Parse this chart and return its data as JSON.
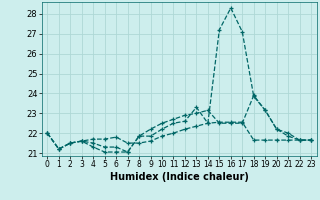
{
  "xlabel": "Humidex (Indice chaleur)",
  "background_color": "#cdeeed",
  "grid_color": "#aed8d6",
  "line_color": "#006666",
  "xlim": [
    -0.5,
    23.5
  ],
  "ylim": [
    20.85,
    28.6
  ],
  "yticks": [
    21,
    22,
    23,
    24,
    25,
    26,
    27,
    28
  ],
  "xticks": [
    0,
    1,
    2,
    3,
    4,
    5,
    6,
    7,
    8,
    9,
    10,
    11,
    12,
    13,
    14,
    15,
    16,
    17,
    18,
    19,
    20,
    21,
    22,
    23
  ],
  "series": [
    [
      22.0,
      21.2,
      21.5,
      21.6,
      21.3,
      21.05,
      21.05,
      21.05,
      21.85,
      21.85,
      22.2,
      22.5,
      22.6,
      23.3,
      22.5,
      27.2,
      28.3,
      27.1,
      23.85,
      23.15,
      22.2,
      21.85,
      21.65,
      21.65
    ],
    [
      22.0,
      21.2,
      21.5,
      21.6,
      21.7,
      21.7,
      21.8,
      21.5,
      21.5,
      21.6,
      21.85,
      22.0,
      22.2,
      22.35,
      22.5,
      22.55,
      22.55,
      22.55,
      21.65,
      21.65,
      21.65,
      21.65,
      21.65,
      21.65
    ],
    [
      22.0,
      21.2,
      21.5,
      21.6,
      21.5,
      21.3,
      21.3,
      21.05,
      21.85,
      22.2,
      22.5,
      22.7,
      22.9,
      23.0,
      23.15,
      22.5,
      22.5,
      22.5,
      23.9,
      23.15,
      22.2,
      22.0,
      21.65,
      21.65
    ]
  ]
}
